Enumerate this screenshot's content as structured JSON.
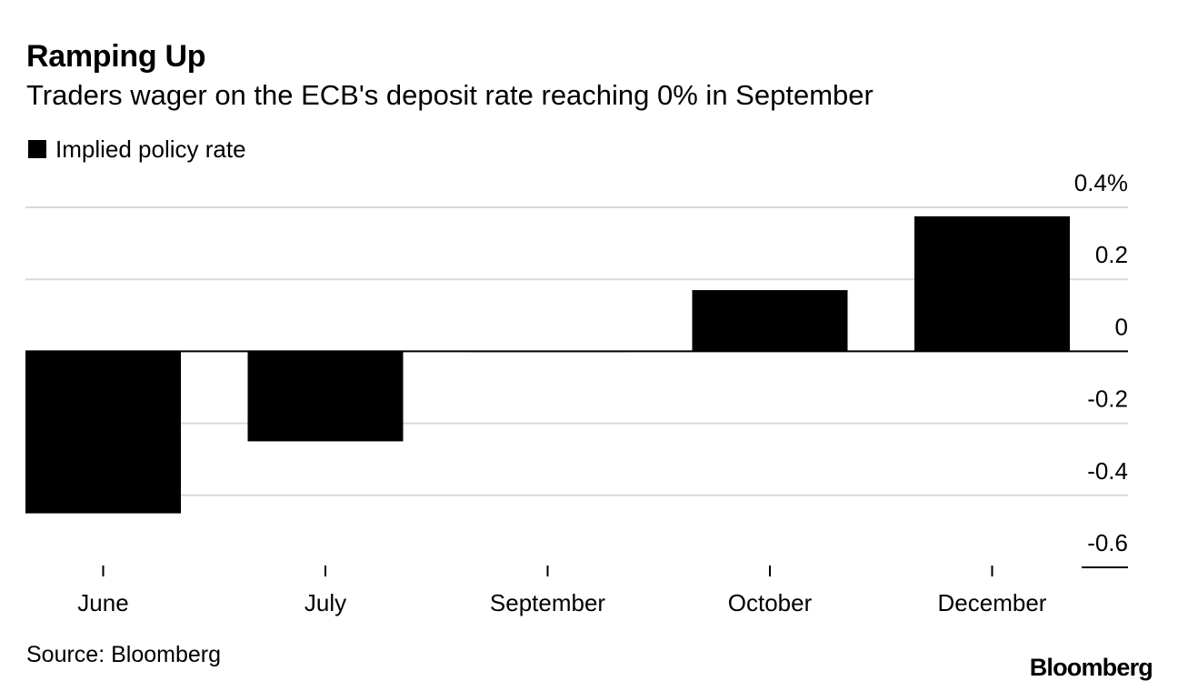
{
  "header": {
    "title": "Ramping Up",
    "subtitle": "Traders wager on the ECB's deposit rate reaching 0% in September"
  },
  "legend": {
    "label": "Implied policy rate"
  },
  "footer": {
    "source": "Source: Bloomberg",
    "brand": "Bloomberg"
  },
  "chart_data": {
    "type": "bar",
    "title": "Ramping Up",
    "subtitle": "Traders wager on the ECB's deposit rate reaching 0% in September",
    "xlabel": "",
    "ylabel": "",
    "categories": [
      "June",
      "July",
      "September",
      "October",
      "December"
    ],
    "series": [
      {
        "name": "Implied policy rate",
        "values": [
          -0.45,
          -0.25,
          -0.003,
          0.17,
          0.375
        ]
      }
    ],
    "ylim": [
      -0.6,
      0.4
    ],
    "y_ticks": [
      0.4,
      0.2,
      0,
      -0.2,
      -0.4,
      -0.6
    ],
    "y_tick_labels": [
      "0.4%",
      "0.2",
      "0",
      "-0.2",
      "-0.4",
      "-0.6"
    ],
    "grid": true,
    "legend_position": "top-left",
    "y_axis_side": "right",
    "bar_color": "#000000",
    "grid_color": "#d9d9d9"
  }
}
